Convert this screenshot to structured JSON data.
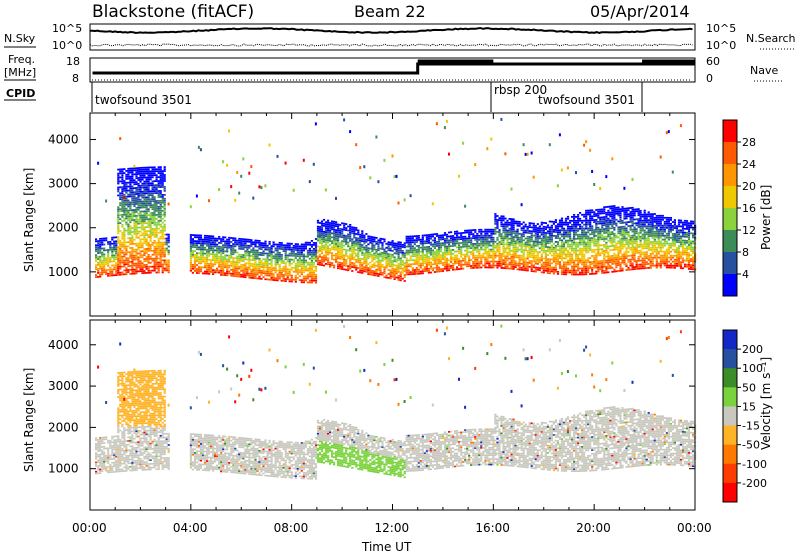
{
  "header": {
    "station": "Blackstone (fitACF)",
    "beam": "Beam 22",
    "date": "05/Apr/2014"
  },
  "panels": {
    "nsky": {
      "label": "N.Sky",
      "right_label": "N.Search",
      "ticks_left": [
        "10^5",
        "10^0"
      ],
      "ticks_right": [
        "10^5",
        "10^0"
      ]
    },
    "freq": {
      "label_line1": "Freq.",
      "label_line2": "[MHz]",
      "right_label": "Nave",
      "ticks_left": [
        "18",
        "8"
      ],
      "ticks_right": [
        "60",
        "0"
      ]
    },
    "cpid": {
      "label": "CPID",
      "segments": [
        {
          "text": "twofsound 3501",
          "start_hour": 0
        },
        {
          "text": "rbsp 200",
          "start_hour": 16
        },
        {
          "text": "twofsound 3501",
          "start_hour": 16
        }
      ]
    }
  },
  "chart_data": [
    {
      "type": "heatmap",
      "name": "power",
      "ylabel": "Slant Range [km]",
      "yticks": [
        1000,
        2000,
        3000,
        4000
      ],
      "ylim": [
        0,
        4600
      ],
      "xlim_hours": [
        0,
        24
      ],
      "colorbar": {
        "label": "Power [dB]",
        "ticks": [
          "28",
          "24",
          "20",
          "16",
          "12",
          "8",
          "4"
        ],
        "colors": [
          "#ff0000",
          "#ff5a00",
          "#ff9600",
          "#f0c800",
          "#8cd23c",
          "#3c8c5a",
          "#2850a0",
          "#0000ff"
        ]
      }
    },
    {
      "type": "heatmap",
      "name": "velocity",
      "ylabel": "Slant Range [km]",
      "yticks": [
        1000,
        2000,
        3000,
        4000
      ],
      "ylim": [
        0,
        4600
      ],
      "xlim_hours": [
        0,
        24
      ],
      "colorbar": {
        "label": "Velocity [m s⁻¹]",
        "ticks": [
          "200",
          "100",
          "50",
          "15",
          "-15",
          "-50",
          "-100",
          "-200"
        ],
        "colors": [
          "#1428c8",
          "#2850a0",
          "#3c8c28",
          "#7ad23c",
          "#c8c8be",
          "#ffb428",
          "#ff7800",
          "#ff3c00",
          "#ff0000"
        ]
      }
    }
  ],
  "xaxis": {
    "label": "Time UT",
    "ticks": [
      "00:00",
      "04:00",
      "08:00",
      "12:00",
      "16:00",
      "20:00",
      "00:00"
    ]
  },
  "colors": {
    "scatter_gray": "#c8c8be",
    "ionosphere_red": "#ff2a00",
    "ionosphere_blue": "#2846a0"
  }
}
